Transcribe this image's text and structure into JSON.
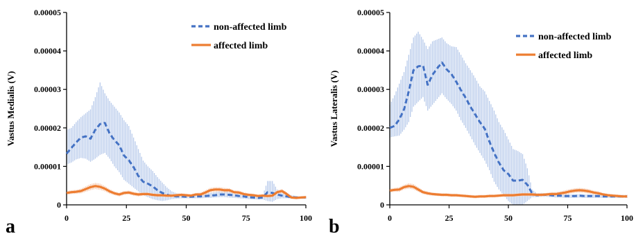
{
  "chart_data": [
    {
      "type": "line",
      "panel_label": "a",
      "ylabel": "Vastus Medialis (V)",
      "xlim": [
        0,
        100
      ],
      "ylim": [
        0,
        5e-05
      ],
      "x_ticks": [
        "0",
        "25",
        "50",
        "75",
        "100"
      ],
      "y_ticks": [
        "0",
        "0.00001",
        "0.00002",
        "0.00003",
        "0.00004",
        "0.00005"
      ],
      "grid": false,
      "legend_position": "top-right",
      "series": [
        {
          "name": "non-affected limb",
          "color": "#4472C4",
          "band_color": "#A9BFE6",
          "style": "dashed",
          "x": [
            0,
            2,
            4,
            6,
            8,
            10,
            12,
            14,
            16,
            18,
            20,
            22,
            24,
            26,
            28,
            30,
            32,
            34,
            36,
            38,
            40,
            42,
            44,
            46,
            48,
            50,
            52,
            54,
            56,
            58,
            60,
            62,
            64,
            66,
            68,
            70,
            72,
            74,
            76,
            78,
            80,
            82,
            84,
            86,
            88,
            90,
            92,
            94,
            96,
            98,
            100
          ],
          "values": [
            1.33e-05,
            1.48e-05,
            1.62e-05,
            1.75e-05,
            1.78e-05,
            1.72e-05,
            1.95e-05,
            2.1e-05,
            2.13e-05,
            1.85e-05,
            1.68e-05,
            1.55e-05,
            1.28e-05,
            1.16e-05,
            9.8e-06,
            7.5e-06,
            6e-06,
            5.5e-06,
            4.8e-06,
            3.8e-06,
            3.1e-06,
            2.6e-06,
            2.3e-06,
            2.2e-06,
            2.2e-06,
            2.1e-06,
            2.1e-06,
            2.2e-06,
            2.2e-06,
            2.3e-06,
            2.4e-06,
            2.5e-06,
            2.7e-06,
            2.7e-06,
            2.6e-06,
            2.5e-06,
            2.3e-06,
            2.2e-06,
            2e-06,
            1.9e-06,
            1.8e-06,
            1.9e-06,
            3.3e-06,
            3.1e-06,
            2.7e-06,
            2.4e-06,
            2.2e-06,
            2e-06,
            1.9e-06,
            1.9e-06,
            1.9e-06
          ],
          "upper": [
            1.95e-05,
            2e-05,
            2.15e-05,
            2.28e-05,
            2.38e-05,
            2.48e-05,
            2.8e-05,
            3.18e-05,
            2.9e-05,
            2.7e-05,
            2.55e-05,
            2.4e-05,
            2.2e-05,
            2.05e-05,
            1.75e-05,
            1.45e-05,
            1.15e-05,
            1e-05,
            8.8e-06,
            7.2e-06,
            5.8e-06,
            4.5e-06,
            3.5e-06,
            3e-06,
            2.8e-06,
            2.7e-06,
            2.7e-06,
            2.8e-06,
            2.9e-06,
            3e-06,
            3.1e-06,
            3.3e-06,
            3.5e-06,
            3.5e-06,
            3.4e-06,
            3.2e-06,
            3e-06,
            2.8e-06,
            2.6e-06,
            2.4e-06,
            2.2e-06,
            2.5e-06,
            6.2e-06,
            6.2e-06,
            4e-06,
            3.2e-06,
            2.8e-06,
            2.5e-06,
            2.3e-06,
            2.2e-06,
            2.2e-06
          ],
          "lower": [
            1.05e-05,
            1.1e-05,
            1.18e-05,
            1.22e-05,
            1.2e-05,
            1.12e-05,
            1.2e-05,
            1.3e-05,
            1.35e-05,
            1.2e-05,
            1e-05,
            8.5e-06,
            6.5e-06,
            5.5e-06,
            4.5e-06,
            3.5e-06,
            2.5e-06,
            2e-06,
            1.5e-06,
            1.2e-06,
            1e-06,
            1.2e-06,
            1.5e-06,
            1.6e-06,
            1.7e-06,
            1.7e-06,
            1.7e-06,
            1.7e-06,
            1.7e-06,
            1.8e-06,
            1.8e-06,
            1.9e-06,
            2e-06,
            2e-06,
            1.9e-06,
            1.8e-06,
            1.7e-06,
            1.6e-06,
            1.5e-06,
            1.4e-06,
            1.4e-06,
            1.4e-06,
            1e-06,
            8e-07,
            1.5e-06,
            1.7e-06,
            1.7e-06,
            1.6e-06,
            1.6e-06,
            1.6e-06,
            1.6e-06
          ]
        },
        {
          "name": "affected limb",
          "color": "#ED7D31",
          "band_color": "#F5C1A2",
          "style": "solid",
          "x": [
            0,
            2,
            4,
            6,
            8,
            10,
            12,
            14,
            16,
            18,
            20,
            22,
            24,
            26,
            28,
            30,
            32,
            34,
            36,
            38,
            40,
            42,
            44,
            46,
            48,
            50,
            52,
            54,
            56,
            58,
            60,
            62,
            64,
            66,
            68,
            70,
            72,
            74,
            76,
            78,
            80,
            82,
            84,
            86,
            88,
            90,
            92,
            94,
            96,
            98,
            100
          ],
          "values": [
            3.1e-06,
            3.3e-06,
            3.4e-06,
            3.6e-06,
            4.1e-06,
            4.6e-06,
            4.9e-06,
            4.7e-06,
            4.2e-06,
            3.5e-06,
            3e-06,
            2.7e-06,
            3.1e-06,
            3.2e-06,
            2.9e-06,
            2.7e-06,
            2.8e-06,
            2.8e-06,
            2.6e-06,
            2.5e-06,
            2.5e-06,
            2.4e-06,
            2.4e-06,
            2.5e-06,
            2.6e-06,
            2.5e-06,
            2.4e-06,
            2.7e-06,
            2.7e-06,
            3.2e-06,
            3.8e-06,
            4e-06,
            4e-06,
            3.8e-06,
            3.8e-06,
            3.3e-06,
            3.2e-06,
            2.8e-06,
            2.6e-06,
            2.5e-06,
            2.3e-06,
            2.4e-06,
            2.3e-06,
            2.4e-06,
            3.3e-06,
            3.6e-06,
            2.8e-06,
            1.9e-06,
            1.8e-06,
            1.9e-06,
            2e-06
          ],
          "upper": [
            3.6e-06,
            3.8e-06,
            3.9e-06,
            4.2e-06,
            4.8e-06,
            5.4e-06,
            5.7e-06,
            5.5e-06,
            4.9e-06,
            4.1e-06,
            3.5e-06,
            3.2e-06,
            3.6e-06,
            3.7e-06,
            3.4e-06,
            3.2e-06,
            3.2e-06,
            3.2e-06,
            3e-06,
            2.9e-06,
            2.9e-06,
            2.8e-06,
            2.8e-06,
            2.9e-06,
            3e-06,
            2.9e-06,
            2.8e-06,
            3.1e-06,
            3.2e-06,
            3.8e-06,
            4.4e-06,
            4.6e-06,
            4.6e-06,
            4.4e-06,
            4.3e-06,
            3.8e-06,
            3.7e-06,
            3.3e-06,
            3e-06,
            2.9e-06,
            2.7e-06,
            2.8e-06,
            2.7e-06,
            2.8e-06,
            3.8e-06,
            4.1e-06,
            3.3e-06,
            2.2e-06,
            2.1e-06,
            2.2e-06,
            2.3e-06
          ],
          "lower": [
            2.6e-06,
            2.8e-06,
            2.9e-06,
            3e-06,
            3.4e-06,
            3.8e-06,
            4.1e-06,
            3.9e-06,
            3.5e-06,
            2.9e-06,
            2.5e-06,
            2.2e-06,
            2.6e-06,
            2.7e-06,
            2.4e-06,
            2.2e-06,
            2.4e-06,
            2.4e-06,
            2.2e-06,
            2.1e-06,
            2.1e-06,
            2e-06,
            2e-06,
            2.1e-06,
            2.2e-06,
            2.1e-06,
            2e-06,
            2.3e-06,
            2.2e-06,
            2.6e-06,
            3.2e-06,
            3.4e-06,
            3.4e-06,
            3.2e-06,
            3.3e-06,
            2.8e-06,
            2.7e-06,
            2.3e-06,
            2.2e-06,
            2.1e-06,
            1.9e-06,
            2e-06,
            1.9e-06,
            2e-06,
            2.8e-06,
            3.1e-06,
            2.3e-06,
            1.6e-06,
            1.5e-06,
            1.6e-06,
            1.7e-06
          ]
        }
      ]
    },
    {
      "type": "line",
      "panel_label": "b",
      "ylabel": "Vastus Lateralis (V)",
      "xlim": [
        0,
        100
      ],
      "ylim": [
        0,
        5e-05
      ],
      "x_ticks": [
        "0",
        "25",
        "50",
        "75",
        "100"
      ],
      "y_ticks": [
        "0",
        "0.00001",
        "0.00002",
        "0.00003",
        "0.00004",
        "0.00005"
      ],
      "grid": false,
      "legend_position": "top-right",
      "series": [
        {
          "name": "non-affected limb",
          "color": "#4472C4",
          "band_color": "#A9BFE6",
          "style": "dashed",
          "x": [
            0,
            2,
            4,
            6,
            8,
            10,
            12,
            14,
            16,
            18,
            20,
            22,
            24,
            26,
            28,
            30,
            32,
            34,
            36,
            38,
            40,
            42,
            44,
            46,
            48,
            50,
            52,
            54,
            56,
            58,
            60,
            62,
            64,
            66,
            68,
            70,
            72,
            74,
            76,
            78,
            80,
            82,
            84,
            86,
            88,
            90,
            92,
            94,
            96,
            98,
            100
          ],
          "values": [
            2e-05,
            2.05e-05,
            2.22e-05,
            2.48e-05,
            2.95e-05,
            3.5e-05,
            3.6e-05,
            3.62e-05,
            3.12e-05,
            3.38e-05,
            3.55e-05,
            3.7e-05,
            3.52e-05,
            3.4e-05,
            3.2e-05,
            2.98e-05,
            2.78e-05,
            2.55e-05,
            2.35e-05,
            2.15e-05,
            1.98e-05,
            1.65e-05,
            1.35e-05,
            1.1e-05,
            9e-06,
            8e-06,
            6.3e-06,
            6.3e-06,
            6.5e-06,
            5.2e-06,
            3e-06,
            2.5e-06,
            2.6e-06,
            2.6e-06,
            2.5e-06,
            2.4e-06,
            2.4e-06,
            2.3e-06,
            2.3e-06,
            2.3e-06,
            2.4e-06,
            2.3e-06,
            2.3e-06,
            2.3e-06,
            2.3e-06,
            2.2e-06,
            2.2e-06,
            2.2e-06,
            2.2e-06,
            2.2e-06,
            2.2e-06
          ],
          "upper": [
            2.6e-05,
            2.85e-05,
            3.15e-05,
            3.45e-05,
            3.9e-05,
            4.35e-05,
            4.5e-05,
            4.3e-05,
            4.05e-05,
            4.25e-05,
            4.3e-05,
            4.35e-05,
            4.2e-05,
            4.12e-05,
            4.1e-05,
            3.9e-05,
            3.68e-05,
            3.5e-05,
            3.3e-05,
            3.08e-05,
            2.95e-05,
            2.7e-05,
            2.45e-05,
            2.15e-05,
            1.95e-05,
            1.7e-05,
            1.45e-05,
            1.4e-05,
            1.32e-05,
            9.5e-06,
            4e-06,
            3e-06,
            3.1e-06,
            3e-06,
            2.9e-06,
            2.9e-06,
            2.8e-06,
            2.8e-06,
            2.7e-06,
            2.7e-06,
            2.8e-06,
            2.7e-06,
            2.7e-06,
            2.7e-06,
            2.7e-06,
            2.6e-06,
            2.6e-06,
            2.6e-06,
            2.6e-06,
            2.6e-06,
            2.6e-06
          ],
          "lower": [
            1.75e-05,
            1.78e-05,
            1.8e-05,
            1.95e-05,
            2.15e-05,
            2.55e-05,
            2.68e-05,
            2.8e-05,
            2.45e-05,
            2.6e-05,
            2.75e-05,
            2.9e-05,
            2.75e-05,
            2.62e-05,
            2.45e-05,
            2.2e-05,
            2e-05,
            1.78e-05,
            1.55e-05,
            1.35e-05,
            1.15e-05,
            9e-06,
            6e-06,
            4e-06,
            2.5e-06,
            1e-06,
            0,
            0,
            0,
            1e-06,
            2e-06,
            2e-06,
            2.1e-06,
            2.1e-06,
            2e-06,
            1.9e-06,
            1.9e-06,
            1.8e-06,
            1.8e-06,
            1.8e-06,
            1.9e-06,
            1.8e-06,
            1.8e-06,
            1.8e-06,
            1.8e-06,
            1.8e-06,
            1.8e-06,
            1.8e-06,
            1.8e-06,
            1.8e-06,
            1.8e-06
          ]
        },
        {
          "name": "affected limb",
          "color": "#ED7D31",
          "band_color": "#F5C1A2",
          "style": "solid",
          "x": [
            0,
            2,
            4,
            6,
            8,
            10,
            12,
            14,
            16,
            18,
            20,
            22,
            24,
            26,
            28,
            30,
            32,
            34,
            36,
            38,
            40,
            42,
            44,
            46,
            48,
            50,
            52,
            54,
            56,
            58,
            60,
            62,
            64,
            66,
            68,
            70,
            72,
            74,
            76,
            78,
            80,
            82,
            84,
            86,
            88,
            90,
            92,
            94,
            96,
            98,
            100
          ],
          "values": [
            3.7e-06,
            3.9e-06,
            4e-06,
            4.6e-06,
            4.9e-06,
            4.7e-06,
            4e-06,
            3.3e-06,
            3e-06,
            2.8e-06,
            2.7e-06,
            2.6e-06,
            2.6e-06,
            2.5e-06,
            2.5e-06,
            2.4e-06,
            2.3e-06,
            2.2e-06,
            2.1e-06,
            2.2e-06,
            2.2e-06,
            2.3e-06,
            2.3e-06,
            2.4e-06,
            2.5e-06,
            2.5e-06,
            2.5e-06,
            2.6e-06,
            2.7e-06,
            2.7e-06,
            2.7e-06,
            2.6e-06,
            2.6e-06,
            2.7e-06,
            2.8e-06,
            2.8e-06,
            3e-06,
            3.2e-06,
            3.5e-06,
            3.7e-06,
            3.8e-06,
            3.7e-06,
            3.5e-06,
            3.2e-06,
            3e-06,
            2.7e-06,
            2.5e-06,
            2.4e-06,
            2.3e-06,
            2.2e-06,
            2.2e-06
          ],
          "upper": [
            4.2e-06,
            4.4e-06,
            4.6e-06,
            5.2e-06,
            5.6e-06,
            5.4e-06,
            4.6e-06,
            3.8e-06,
            3.5e-06,
            3.2e-06,
            3.1e-06,
            3e-06,
            3e-06,
            2.9e-06,
            2.9e-06,
            2.8e-06,
            2.7e-06,
            2.6e-06,
            2.5e-06,
            2.6e-06,
            2.6e-06,
            2.7e-06,
            2.7e-06,
            2.8e-06,
            2.9e-06,
            2.9e-06,
            2.9e-06,
            3e-06,
            3.1e-06,
            3.1e-06,
            3.1e-06,
            3e-06,
            3e-06,
            3.1e-06,
            3.3e-06,
            3.3e-06,
            3.5e-06,
            3.8e-06,
            4.1e-06,
            4.3e-06,
            4.4e-06,
            4.3e-06,
            4.1e-06,
            3.7e-06,
            3.5e-06,
            3.1e-06,
            2.9e-06,
            2.8e-06,
            2.7e-06,
            2.6e-06,
            2.6e-06
          ],
          "lower": [
            3.2e-06,
            3.4e-06,
            3.4e-06,
            4e-06,
            4.2e-06,
            4e-06,
            3.4e-06,
            2.8e-06,
            2.5e-06,
            2.4e-06,
            2.3e-06,
            2.2e-06,
            2.2e-06,
            2.1e-06,
            2.1e-06,
            2e-06,
            1.9e-06,
            1.8e-06,
            1.7e-06,
            1.8e-06,
            1.8e-06,
            1.9e-06,
            1.9e-06,
            2e-06,
            2.1e-06,
            2.1e-06,
            2.1e-06,
            2.2e-06,
            2.3e-06,
            2.3e-06,
            2.3e-06,
            2.2e-06,
            2.2e-06,
            2.3e-06,
            2.3e-06,
            2.3e-06,
            2.5e-06,
            2.6e-06,
            2.9e-06,
            3.1e-06,
            3.2e-06,
            3.1e-06,
            2.9e-06,
            2.7e-06,
            2.5e-06,
            2.3e-06,
            2.1e-06,
            2e-06,
            1.9e-06,
            1.8e-06,
            1.8e-06
          ]
        }
      ]
    }
  ]
}
